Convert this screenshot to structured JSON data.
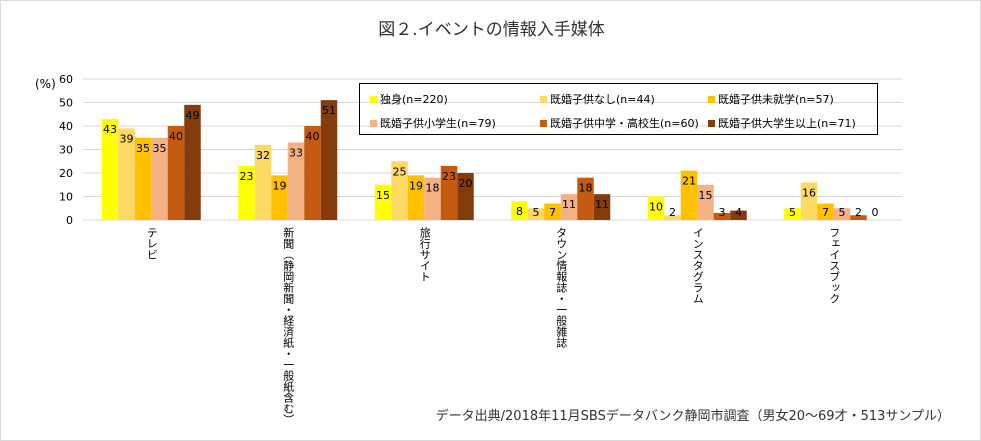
{
  "chart_data": {
    "type": "bar",
    "title": "図２.イベントの情報入手媒体",
    "ylabel": "(%)",
    "ylim": [
      0,
      60
    ],
    "yticks": [
      0,
      10,
      20,
      30,
      40,
      50,
      60
    ],
    "grid": true,
    "legend_position": "top-right",
    "categories": [
      "テレビ",
      "新聞（静岡新聞・経済紙・一般紙含む）",
      "旅行サイト",
      "タウン情報誌・一般雑誌",
      "インスタグラム",
      "フェイスブック"
    ],
    "series": [
      {
        "name": "独身(n=220)",
        "color": "#FFFF00",
        "values": [
          43,
          23,
          15,
          8,
          10,
          5
        ]
      },
      {
        "name": "既婚子供なし(n=44)",
        "color": "#FFD966",
        "values": [
          39,
          32,
          25,
          5,
          2,
          16
        ]
      },
      {
        "name": "既婚子供未就学(n=57)",
        "color": "#FFC000",
        "values": [
          35,
          19,
          19,
          7,
          21,
          7
        ]
      },
      {
        "name": "既婚子供小学生(n=79)",
        "color": "#F4B183",
        "values": [
          35,
          33,
          18,
          11,
          15,
          5
        ]
      },
      {
        "name": "既婚子供中学・高校生(n=60)",
        "color": "#C55A11",
        "values": [
          40,
          40,
          23,
          18,
          3,
          2
        ]
      },
      {
        "name": "既婚子供大学生以上(n=71)",
        "color": "#843C0C",
        "values": [
          49,
          51,
          20,
          11,
          4,
          0
        ]
      }
    ],
    "source": "データ出典/2018年11月SBSデータバンク静岡市調査（男女20〜69才・513サンプル）"
  }
}
